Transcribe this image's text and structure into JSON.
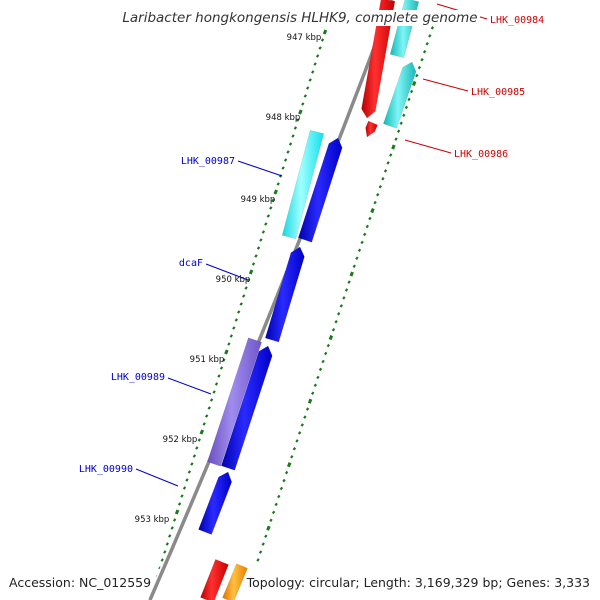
{
  "title": "Laribacter hongkongensis HLHK9, complete genome",
  "footer": {
    "accession": "Accession: NC_012559",
    "stats": "Topology: circular; Length: 3,169,329 bp; Genes: 3,333"
  },
  "colors": {
    "backbone": "#8a8a8a",
    "ticks": "#1a7a1a",
    "red_labels": "#cc0000",
    "blue_labels": "#0000cc"
  },
  "scale": [
    {
      "label": "947 kbp"
    },
    {
      "label": "948 kbp"
    },
    {
      "label": "949 kbp"
    },
    {
      "label": "950 kbp"
    },
    {
      "label": "951 kbp"
    },
    {
      "label": "952 kbp"
    },
    {
      "label": "953 kbp"
    }
  ],
  "genes": [
    {
      "name": "LHK_00984",
      "color": "red",
      "label_color": "red"
    },
    {
      "name": "",
      "color": "cyan",
      "label_color": ""
    },
    {
      "name": "LHK_00985",
      "color": "cyan",
      "label_color": "red"
    },
    {
      "name": "LHK_00986",
      "color": "red",
      "label_color": "red"
    },
    {
      "name": "LHK_00987",
      "color": "cyan",
      "label_color": "blue"
    },
    {
      "name": "",
      "color": "blue",
      "label_color": ""
    },
    {
      "name": "dcaF",
      "color": "blue",
      "label_color": "blue"
    },
    {
      "name": "LHK_00989",
      "color": "purple",
      "label_color": "blue"
    },
    {
      "name": "",
      "color": "blue",
      "label_color": ""
    },
    {
      "name": "LHK_00990",
      "color": "blue",
      "label_color": "blue"
    },
    {
      "name": "",
      "color": "red",
      "label_color": ""
    },
    {
      "name": "",
      "color": "orange",
      "label_color": ""
    }
  ]
}
